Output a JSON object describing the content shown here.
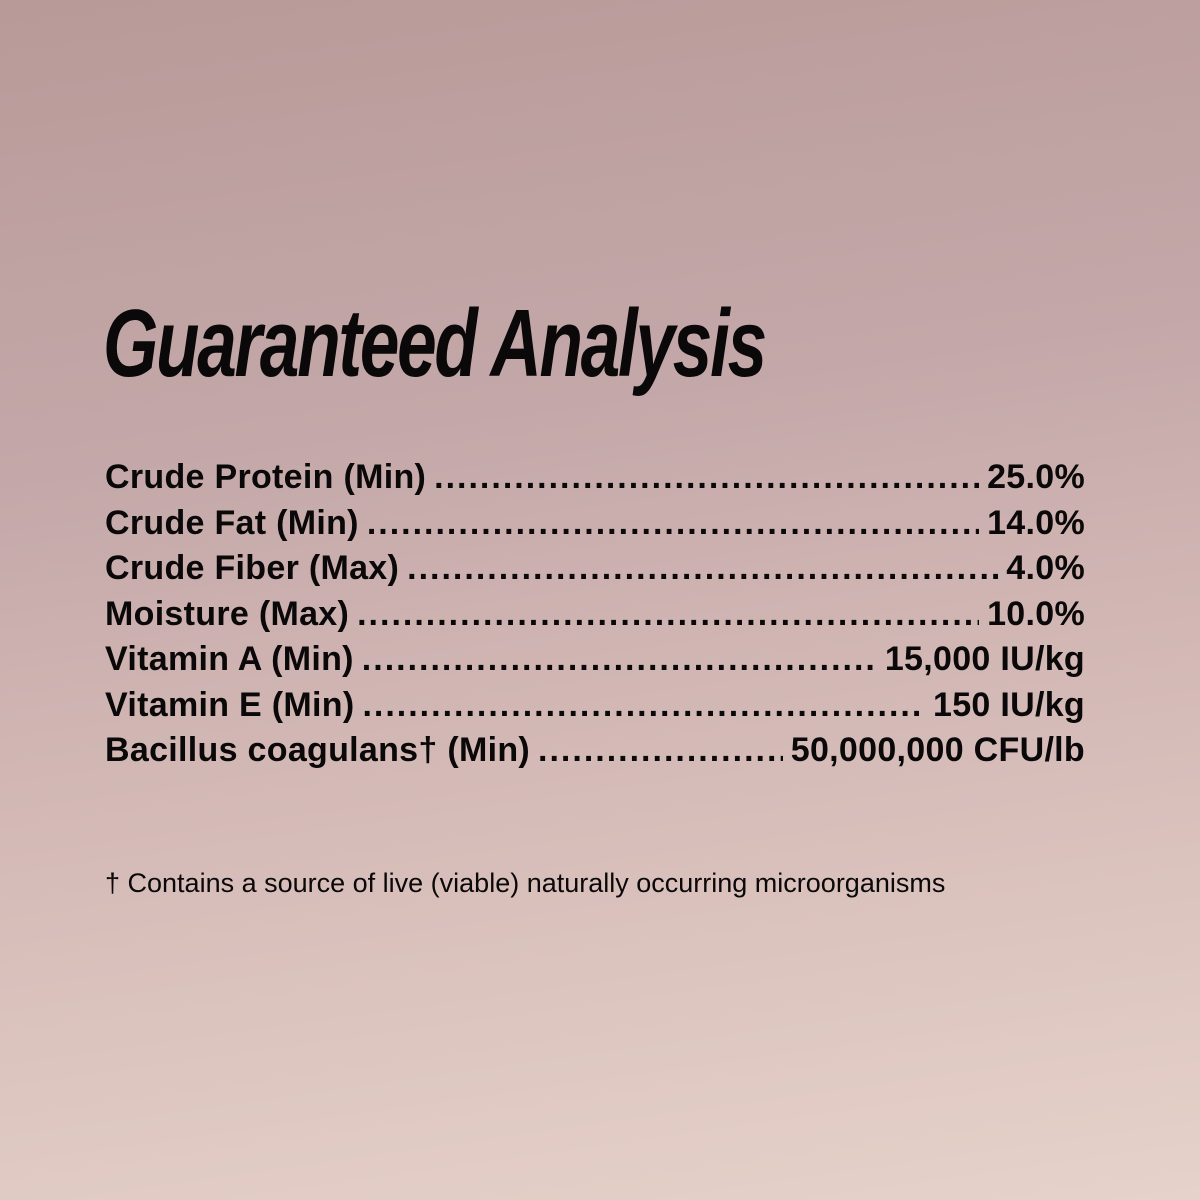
{
  "title": "Guaranteed Analysis",
  "rows": [
    {
      "label": "Crude Protein (Min)",
      "value": "25.0%"
    },
    {
      "label": "Crude Fat (Min)",
      "value": "14.0%"
    },
    {
      "label": "Crude Fiber (Max)",
      "value": "4.0%"
    },
    {
      "label": "Moisture (Max)",
      "value": "10.0%"
    },
    {
      "label": "Vitamin A (Min)",
      "value": "15,000 IU/kg"
    },
    {
      "label": "Vitamin E (Min)",
      "value": "150 IU/kg"
    },
    {
      "label": "Bacillus coagulans† (Min)",
      "value": "50,000,000 CFU/lb"
    }
  ],
  "footnote": "† Contains a source of live (viable) naturally occurring microorganisms",
  "colors": {
    "text": "#0a0808",
    "background_top": "#b89a98",
    "background_bottom": "#e6d2ca"
  }
}
